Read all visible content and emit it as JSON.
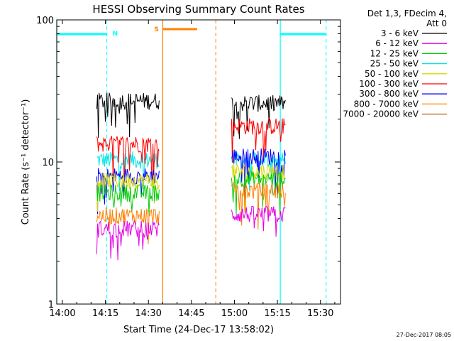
{
  "chart_data": {
    "type": "line",
    "title": "HESSI Observing Summary Count Rates",
    "xlabel": "Start Time (24-Dec-17 13:58:02)",
    "ylabel": "Count Rate (s⁻¹ detector⁻¹)",
    "yscale": "log",
    "ylim": [
      1,
      100
    ],
    "xlim": [
      "13:58:02",
      "15:37:00"
    ],
    "x_ticks": [
      "14:00",
      "14:15",
      "14:30",
      "14:45",
      "15:00",
      "15:15",
      "15:30"
    ],
    "y_ticks": [
      "1",
      "10",
      "100"
    ],
    "grid": false,
    "legend_position": "top-right",
    "legend_header": [
      "Det 1,3, FDecim 4,",
      "Att 0"
    ],
    "series": [
      {
        "name": "3 - 6 keV",
        "color": "#000000",
        "segments": [
          {
            "start": "14:12",
            "end": "14:34",
            "level": 27
          },
          {
            "start": "14:59",
            "end": "15:18",
            "level": 26
          }
        ]
      },
      {
        "name": "6 - 12 keV",
        "color": "#e600e6",
        "segments": [
          {
            "start": "14:12",
            "end": "14:34",
            "level": 3.4
          },
          {
            "start": "14:59",
            "end": "15:18",
            "level": 4.3
          }
        ]
      },
      {
        "name": "12 - 25 keV",
        "color": "#00cc00",
        "segments": [
          {
            "start": "14:12",
            "end": "14:34",
            "level": 6.1
          },
          {
            "start": "14:59",
            "end": "15:18",
            "level": 7.6
          }
        ]
      },
      {
        "name": "25 - 50 keV",
        "color": "#00e5e5",
        "segments": [
          {
            "start": "14:12",
            "end": "14:34",
            "level": 10.4
          },
          {
            "start": "14:59",
            "end": "15:18",
            "level": 10.3
          }
        ]
      },
      {
        "name": "50 - 100 keV",
        "color": "#d8d800",
        "segments": [
          {
            "start": "14:12",
            "end": "14:34",
            "level": 7.4
          },
          {
            "start": "14:59",
            "end": "15:18",
            "level": 8.6
          }
        ]
      },
      {
        "name": "100 - 300 keV",
        "color": "#ff0000",
        "segments": [
          {
            "start": "14:12",
            "end": "14:34",
            "level": 13.5
          },
          {
            "start": "14:59",
            "end": "15:18",
            "level": 18
          }
        ]
      },
      {
        "name": "300 - 800 keV",
        "color": "#0000ff",
        "segments": [
          {
            "start": "14:12",
            "end": "14:34",
            "level": 8
          },
          {
            "start": "14:59",
            "end": "15:18",
            "level": 11
          }
        ]
      },
      {
        "name": "800 - 7000 keV",
        "color": "#ff8000",
        "segments": [
          {
            "start": "14:12",
            "end": "14:34",
            "level": 4.2
          },
          {
            "start": "14:59",
            "end": "15:18",
            "level": 6.3
          }
        ]
      },
      {
        "name": "7000 - 20000 keV",
        "color": "#b06000",
        "segments": []
      }
    ],
    "annotations": {
      "night_label": "N",
      "saa_label": "S",
      "night_bars": [
        {
          "start": "13:58:02",
          "end": "14:15:30"
        },
        {
          "start": "15:16",
          "end": "15:32"
        }
      ],
      "saa_bars": [
        {
          "start": "14:35",
          "end": "14:47"
        }
      ],
      "cyan_solid_lines": [
        "13:58:02",
        "15:16"
      ],
      "cyan_dashed_lines": [
        "14:15:30",
        "15:32"
      ],
      "orange_solid_lines": [
        "14:35"
      ],
      "orange_dashed_lines": [
        "14:53:30"
      ],
      "night_color": "#00ffff",
      "saa_color": "#ff8000"
    },
    "footer_date": "27-Dec-2017 08:05"
  }
}
